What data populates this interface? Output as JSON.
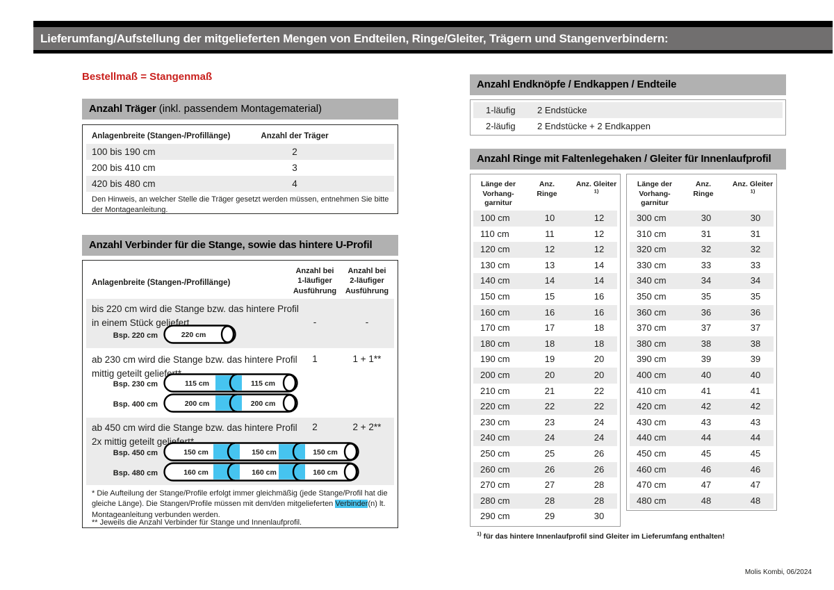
{
  "header": {
    "title": "Lieferumfang/Aufstellung der mitgelieferten Mengen von Endteilen, Ringe/Gleiter, Trägern und Stangenverbindern:"
  },
  "subtitle": "Bestellmaß = Stangenmaß",
  "colors": {
    "red": "#c9201d",
    "cyan": "#46c4f0",
    "bar_gray": "#b1b1b1",
    "top_gray": "#716f6f",
    "stripe": "#ebebeb"
  },
  "traeger": {
    "title_bold": "Anzahl Träger",
    "title_rest": " (inkl. passendem Montagematerial)",
    "col_breite": "Anlagenbreite (Stangen-/Profillänge)",
    "col_anzahl": "Anzahl der Träger",
    "rows": [
      [
        "100 bis 190 cm",
        "2"
      ],
      [
        "200 bis 410 cm",
        "3"
      ],
      [
        "420 bis 480 cm",
        "4"
      ]
    ],
    "note": "Den Hinweis, an welcher Stelle die Träger gesetzt werden müssen, entnehmen Sie bitte der Montageanleitung."
  },
  "verbinder": {
    "title": "Anzahl Verbinder für die Stange, sowie das hintere U-Profil",
    "col_breite": "Anlagenbreite (Stangen-/Profillänge)",
    "col_1laeufig": "Anzahl bei\n1-läufiger\nAusführung",
    "col_2laeufig": "Anzahl bei\n2-läufiger\nAusführung",
    "rows": [
      {
        "text": "bis 220 cm wird die Stange bzw. das hintere Profil in einem Stück geliefert",
        "v1": "-",
        "v2": "-",
        "examples": [
          {
            "label": "Bsp. 220 cm",
            "segments": [
              "220 cm"
            ]
          }
        ]
      },
      {
        "text": "ab 230 cm wird die Stange bzw. das hintere Profil mittig geteilt geliefert*",
        "v1": "1",
        "v2": "1 + 1**",
        "examples": [
          {
            "label": "Bsp. 230 cm",
            "segments": [
              "115 cm",
              "115 cm"
            ]
          },
          {
            "label": "Bsp. 400 cm",
            "segments": [
              "200 cm",
              "200 cm"
            ]
          }
        ]
      },
      {
        "text": "ab 450 cm wird die Stange bzw. das hintere Profil 2x mittig geteilt geliefert*",
        "v1": "2",
        "v2": "2 + 2**",
        "examples": [
          {
            "label": "Bsp. 450 cm",
            "segments": [
              "150 cm",
              "150 cm",
              "150 cm"
            ]
          },
          {
            "label": "Bsp. 480 cm",
            "segments": [
              "160 cm",
              "160 cm",
              "160 cm"
            ]
          }
        ]
      }
    ],
    "footnote1_pre": "* Die Aufteilung der Stange/Profile erfolgt immer gleichmäßig (jede Stange/Profil hat die gleiche Länge). Die Stangen/Profile müssen mit dem/den mitgelieferten ",
    "footnote1_mark": "Verbinder",
    "footnote1_post": "(n) lt. Montageanleitung verbunden werden.",
    "footnote2": "** Jeweils die Anzahl Verbinder für Stange und Innenlaufprofil."
  },
  "endteile": {
    "title": "Anzahl Endknöpfe / Endkappen / Endteile",
    "rows": [
      [
        "1-läufig",
        "2 Endstücke"
      ],
      [
        "2-läufig",
        "2 Endstücke + 2 Endkappen"
      ]
    ]
  },
  "ringe": {
    "title": "Anzahl Ringe mit Faltenlegehaken / Gleiter für Innenlaufprofil",
    "col_laenge": "Länge der\nVorhang-\ngarnitur",
    "col_ringe": "Anz. Ringe",
    "col_gleiter": "Anz. Gleiter ",
    "col_gleiter_sup": "1)",
    "left_rows": [
      [
        "100 cm",
        "10",
        "12"
      ],
      [
        "110 cm",
        "11",
        "12"
      ],
      [
        "120 cm",
        "12",
        "12"
      ],
      [
        "130 cm",
        "13",
        "14"
      ],
      [
        "140 cm",
        "14",
        "14"
      ],
      [
        "150 cm",
        "15",
        "16"
      ],
      [
        "160 cm",
        "16",
        "16"
      ],
      [
        "170 cm",
        "17",
        "18"
      ],
      [
        "180 cm",
        "18",
        "18"
      ],
      [
        "190 cm",
        "19",
        "20"
      ],
      [
        "200 cm",
        "20",
        "20"
      ],
      [
        "210 cm",
        "21",
        "22"
      ],
      [
        "220 cm",
        "22",
        "22"
      ],
      [
        "230 cm",
        "23",
        "24"
      ],
      [
        "240 cm",
        "24",
        "24"
      ],
      [
        "250 cm",
        "25",
        "26"
      ],
      [
        "260 cm",
        "26",
        "26"
      ],
      [
        "270 cm",
        "27",
        "28"
      ],
      [
        "280 cm",
        "28",
        "28"
      ],
      [
        "290 cm",
        "29",
        "30"
      ]
    ],
    "right_rows": [
      [
        "300 cm",
        "30",
        "30"
      ],
      [
        "310 cm",
        "31",
        "31"
      ],
      [
        "320 cm",
        "32",
        "32"
      ],
      [
        "330 cm",
        "33",
        "33"
      ],
      [
        "340 cm",
        "34",
        "34"
      ],
      [
        "350 cm",
        "35",
        "35"
      ],
      [
        "360 cm",
        "36",
        "36"
      ],
      [
        "370 cm",
        "37",
        "37"
      ],
      [
        "380 cm",
        "38",
        "38"
      ],
      [
        "390 cm",
        "39",
        "39"
      ],
      [
        "400 cm",
        "40",
        "40"
      ],
      [
        "410 cm",
        "41",
        "41"
      ],
      [
        "420 cm",
        "42",
        "42"
      ],
      [
        "430 cm",
        "43",
        "43"
      ],
      [
        "440 cm",
        "44",
        "44"
      ],
      [
        "450 cm",
        "45",
        "45"
      ],
      [
        "460 cm",
        "46",
        "46"
      ],
      [
        "470 cm",
        "47",
        "47"
      ],
      [
        "480 cm",
        "48",
        "48"
      ]
    ],
    "footnote_sup": "1)",
    "footnote": " für das hintere Innenlaufprofil sind Gleiter im Lieferumfang enthalten!"
  },
  "footer": "Molis Kombi, 06/2024"
}
